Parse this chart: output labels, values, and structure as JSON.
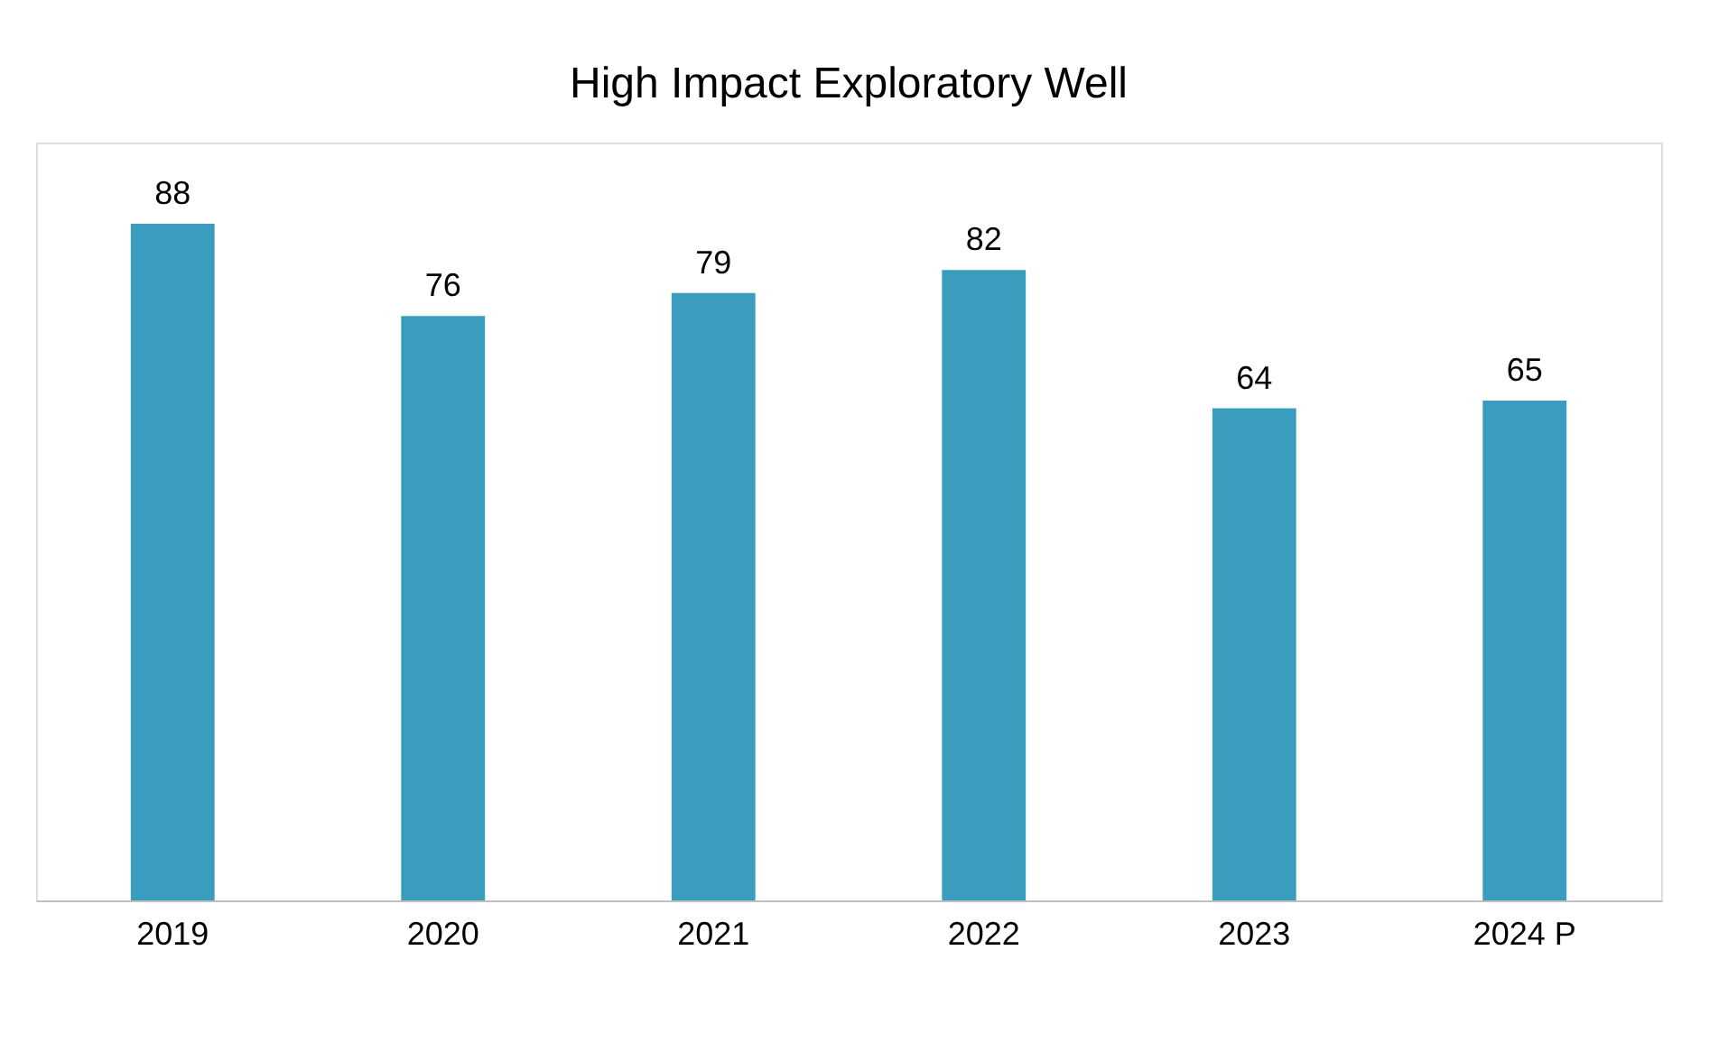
{
  "chart_data": {
    "type": "bar",
    "title": "High Impact Exploratory Well",
    "categories": [
      "2019",
      "2020",
      "2021",
      "2022",
      "2023",
      "2024 P"
    ],
    "values": [
      88,
      76,
      79,
      82,
      64,
      65
    ],
    "color": "#3a9dbd",
    "data_labels": true,
    "grid": false
  }
}
